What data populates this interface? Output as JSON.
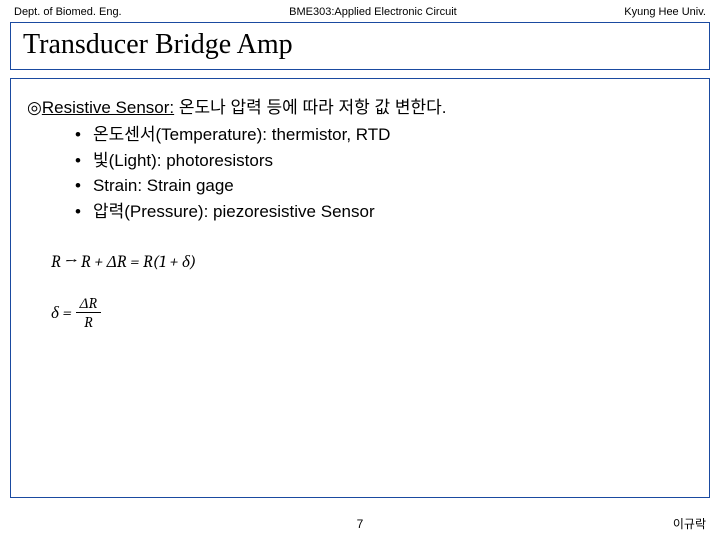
{
  "header": {
    "left": "Dept. of Biomed. Eng.",
    "center": "BME303:Applied Electronic Circuit",
    "right": "Kyung Hee Univ."
  },
  "title": "Transducer Bridge Amp",
  "content": {
    "main_line_prefix": "◎",
    "main_line_label": "Resistive Sensor:",
    "main_line_rest": " 온도나 압력 등에 따라 저항 값 변한다.",
    "bullets": [
      "온도센서(Temperature): thermistor, RTD",
      "빛(Light): photoresistors",
      "Strain: Strain gage",
      "압력(Pressure): piezoresistive Sensor"
    ],
    "formula1": "R → R + ΔR = R(1 + δ)",
    "formula2_lhs": "δ =",
    "formula2_num": "ΔR",
    "formula2_den": "R"
  },
  "footer": {
    "page": "7",
    "author": "이규락"
  }
}
